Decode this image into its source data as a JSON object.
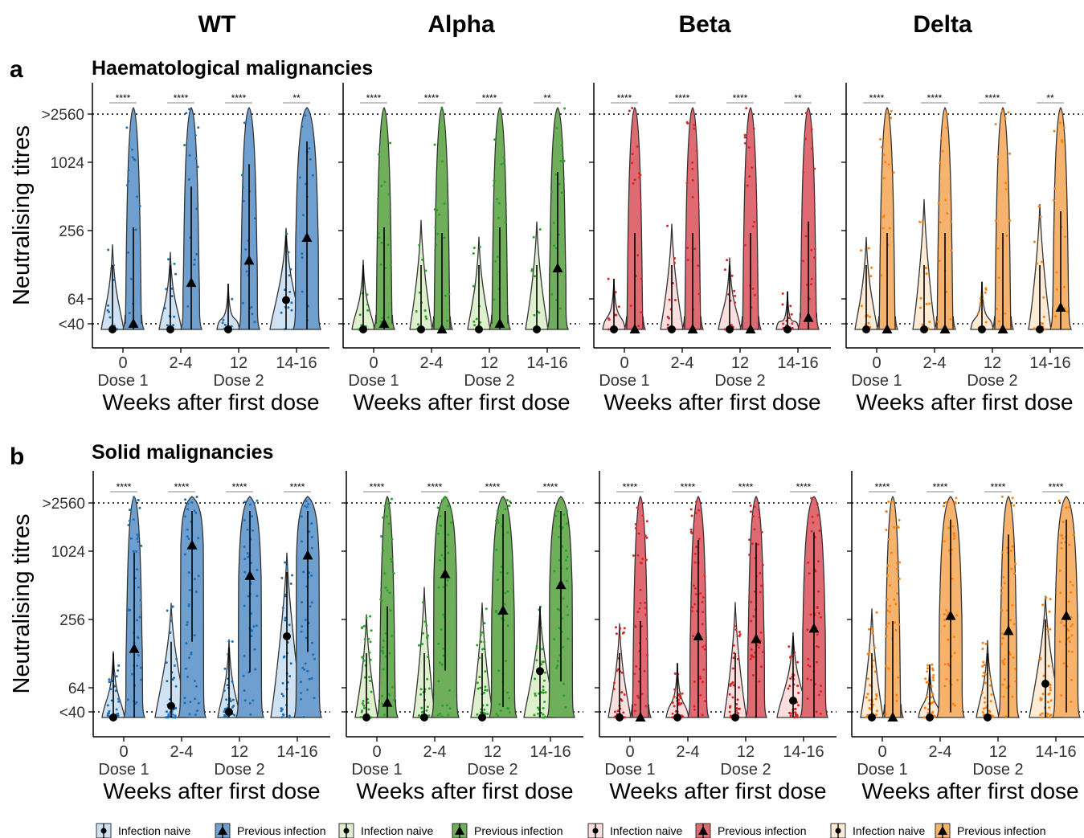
{
  "variants": [
    "WT",
    "Alpha",
    "Beta",
    "Delta"
  ],
  "panel_letters": [
    "a",
    "b"
  ],
  "panel_titles": [
    "Haematological malignancies",
    "Solid malignancies"
  ],
  "y_axis_label": "Neutralising titres",
  "y_tick_labels": [
    ">2560",
    "1024",
    "256",
    "64",
    "<40"
  ],
  "x_tick_labels": [
    "0",
    "2-4",
    "12",
    "14-16"
  ],
  "x_sublabels": [
    "Dose 1",
    "Dose 2"
  ],
  "x_axis_label": "Weeks after first dose",
  "legend": [
    {
      "label": "Infection naive",
      "color": "#cfe2f3",
      "shape": "circle"
    },
    {
      "label": "Previous infection",
      "color": "#6f9fcf",
      "shape": "triangle"
    },
    {
      "label": "Infection naive",
      "color": "#dff0cf",
      "shape": "circle"
    },
    {
      "label": "Previous infection",
      "color": "#6fae5a",
      "shape": "triangle"
    },
    {
      "label": "Infection naive",
      "color": "#fbdede",
      "shape": "circle"
    },
    {
      "label": "Previous infection",
      "color": "#e06a72",
      "shape": "triangle"
    },
    {
      "label": "Infection naive",
      "color": "#fdebd6",
      "shape": "circle"
    },
    {
      "label": "Previous infection",
      "color": "#f5b36e",
      "shape": "triangle"
    }
  ],
  "variant_colors": {
    "WT": {
      "naive": "#cfe2f3",
      "previous": "#6f9fcf",
      "dots": "#1f6fb4"
    },
    "Alpha": {
      "naive": "#dff0cf",
      "previous": "#6fae5a",
      "dots": "#2ca02c"
    },
    "Beta": {
      "naive": "#fbdede",
      "previous": "#e06a72",
      "dots": "#d62728"
    },
    "Delta": {
      "naive": "#fdebd6",
      "previous": "#f5b36e",
      "dots": "#ff7f0e"
    }
  },
  "chart_data": [
    {
      "type": "violin",
      "panel": "a",
      "title": "Haematological malignancies",
      "ylabel": "Neutralising titres",
      "xlabel": "Weeks after first dose",
      "y_scale": "log2",
      "y_ticks": [
        ">2560",
        "1024",
        "256",
        "64",
        "<40"
      ],
      "categories": [
        "0",
        "2-4",
        "12",
        "14-16"
      ],
      "reference_lines": [
        "<40",
        ">2560"
      ],
      "significance": {
        "WT": [
          "****",
          "****",
          "****",
          "**"
        ],
        "Alpha": [
          "****",
          "****",
          "****",
          "**"
        ],
        "Beta": [
          "****",
          "****",
          "****",
          "**"
        ],
        "Delta": [
          "****",
          "****",
          "****",
          "**"
        ]
      },
      "series": [
        {
          "variant": "WT",
          "group": "Infection naive",
          "medians": [
            30,
            30,
            30,
            64
          ]
        },
        {
          "variant": "WT",
          "group": "Previous infection",
          "medians": [
            40,
            90,
            140,
            220
          ]
        },
        {
          "variant": "Alpha",
          "group": "Infection naive",
          "medians": [
            30,
            30,
            30,
            30
          ]
        },
        {
          "variant": "Alpha",
          "group": "Previous infection",
          "medians": [
            40,
            30,
            40,
            120
          ]
        },
        {
          "variant": "Beta",
          "group": "Infection naive",
          "medians": [
            30,
            30,
            30,
            30
          ]
        },
        {
          "variant": "Beta",
          "group": "Previous infection",
          "medians": [
            30,
            30,
            30,
            45
          ]
        },
        {
          "variant": "Delta",
          "group": "Infection naive",
          "medians": [
            30,
            30,
            30,
            30
          ]
        },
        {
          "variant": "Delta",
          "group": "Previous infection",
          "medians": [
            30,
            30,
            30,
            55
          ]
        }
      ]
    },
    {
      "type": "violin",
      "panel": "b",
      "title": "Solid malignancies",
      "ylabel": "Neutralising titres",
      "xlabel": "Weeks after first dose",
      "y_scale": "log2",
      "y_ticks": [
        ">2560",
        "1024",
        "256",
        "64",
        "<40"
      ],
      "categories": [
        "0",
        "2-4",
        "12",
        "14-16"
      ],
      "reference_lines": [
        "<40",
        ">2560"
      ],
      "significance": {
        "WT": [
          "****",
          "****",
          "****",
          "****"
        ],
        "Alpha": [
          "****",
          "****",
          "****",
          "****"
        ],
        "Beta": [
          "****",
          "****",
          "****",
          "****"
        ],
        "Delta": [
          "****",
          "****",
          "****",
          "****"
        ]
      },
      "series": [
        {
          "variant": "WT",
          "group": "Infection naive",
          "medians": [
            30,
            45,
            40,
            180
          ]
        },
        {
          "variant": "WT",
          "group": "Previous infection",
          "medians": [
            140,
            1100,
            600,
            900
          ]
        },
        {
          "variant": "Alpha",
          "group": "Infection naive",
          "medians": [
            30,
            30,
            30,
            90
          ]
        },
        {
          "variant": "Alpha",
          "group": "Previous infection",
          "medians": [
            48,
            620,
            300,
            500
          ]
        },
        {
          "variant": "Beta",
          "group": "Infection naive",
          "medians": [
            30,
            30,
            30,
            50
          ]
        },
        {
          "variant": "Beta",
          "group": "Previous infection",
          "medians": [
            30,
            180,
            170,
            210
          ]
        },
        {
          "variant": "Delta",
          "group": "Infection naive",
          "medians": [
            30,
            30,
            30,
            70
          ]
        },
        {
          "variant": "Delta",
          "group": "Previous infection",
          "medians": [
            30,
            270,
            200,
            270
          ]
        }
      ]
    }
  ]
}
